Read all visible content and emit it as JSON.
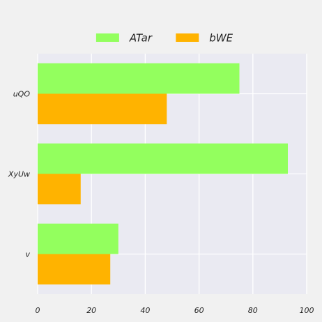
{
  "chart_data": {
    "type": "bar",
    "orientation": "horizontal",
    "categories": [
      "uQO",
      "XyUw",
      "v"
    ],
    "series": [
      {
        "name": "ATar",
        "values": [
          75,
          93,
          30
        ],
        "color": "#93ff5e"
      },
      {
        "name": "bWE",
        "values": [
          48,
          16,
          27
        ],
        "color": "#ffb300"
      }
    ],
    "xlim": [
      0,
      100
    ],
    "x_ticks": [
      "0",
      "20",
      "40",
      "60",
      "80",
      "100"
    ],
    "grid": true,
    "legend_position": "top-center",
    "plot_background": "#eaeaf2",
    "grid_color": "#ffffff"
  }
}
